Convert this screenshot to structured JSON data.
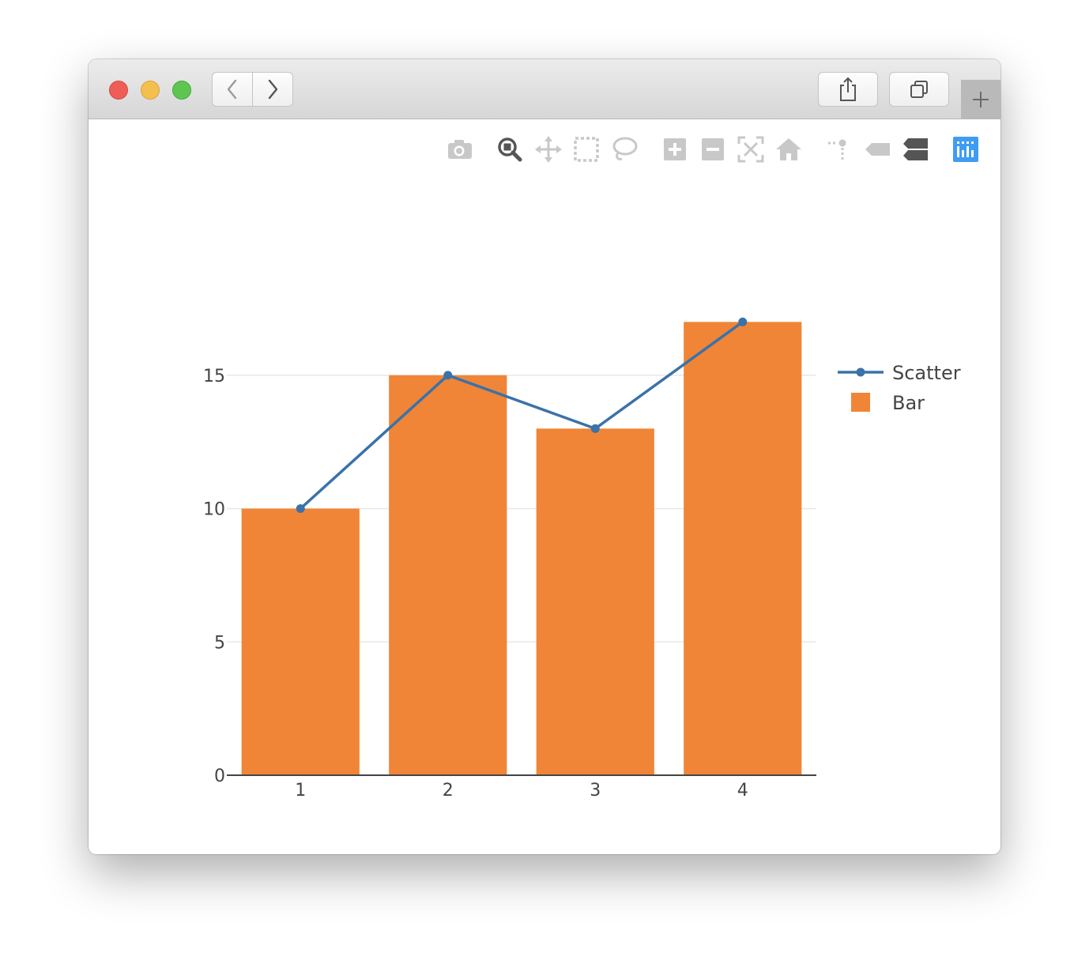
{
  "browser": {
    "nav": {
      "back": "chevron-left-icon",
      "forward": "chevron-right-icon"
    },
    "toolbar": {
      "share": "share-icon",
      "tabs": "tabs-overview-icon",
      "new_tab": "plus-icon"
    }
  },
  "modebar": {
    "icons": [
      "camera-icon",
      "zoom-icon",
      "pan-icon",
      "box-select-icon",
      "lasso-select-icon",
      "zoom-in-icon",
      "zoom-out-icon",
      "autoscale-icon",
      "reset-axes-icon",
      "spike-lines-icon",
      "hover-closest-icon",
      "hover-compare-icon",
      "plotly-logo-icon"
    ],
    "colors": {
      "inactive": "#c8c8c8",
      "active": "#555555",
      "logo": "#3f9cf4"
    }
  },
  "chart_data": {
    "type": "bar",
    "categories": [
      "1",
      "2",
      "3",
      "4"
    ],
    "series": [
      {
        "name": "Scatter",
        "type": "line",
        "values": [
          10,
          15,
          13,
          17
        ],
        "color": "#3a72a9"
      },
      {
        "name": "Bar",
        "type": "bar",
        "values": [
          10,
          15,
          13,
          17
        ],
        "color": "#f08537"
      }
    ],
    "yticks": [
      "0",
      "5",
      "10",
      "15"
    ],
    "ylim": [
      0,
      17.9
    ],
    "xlabel": "",
    "ylabel": "",
    "title": "",
    "grid": true,
    "legend": "top-right"
  }
}
